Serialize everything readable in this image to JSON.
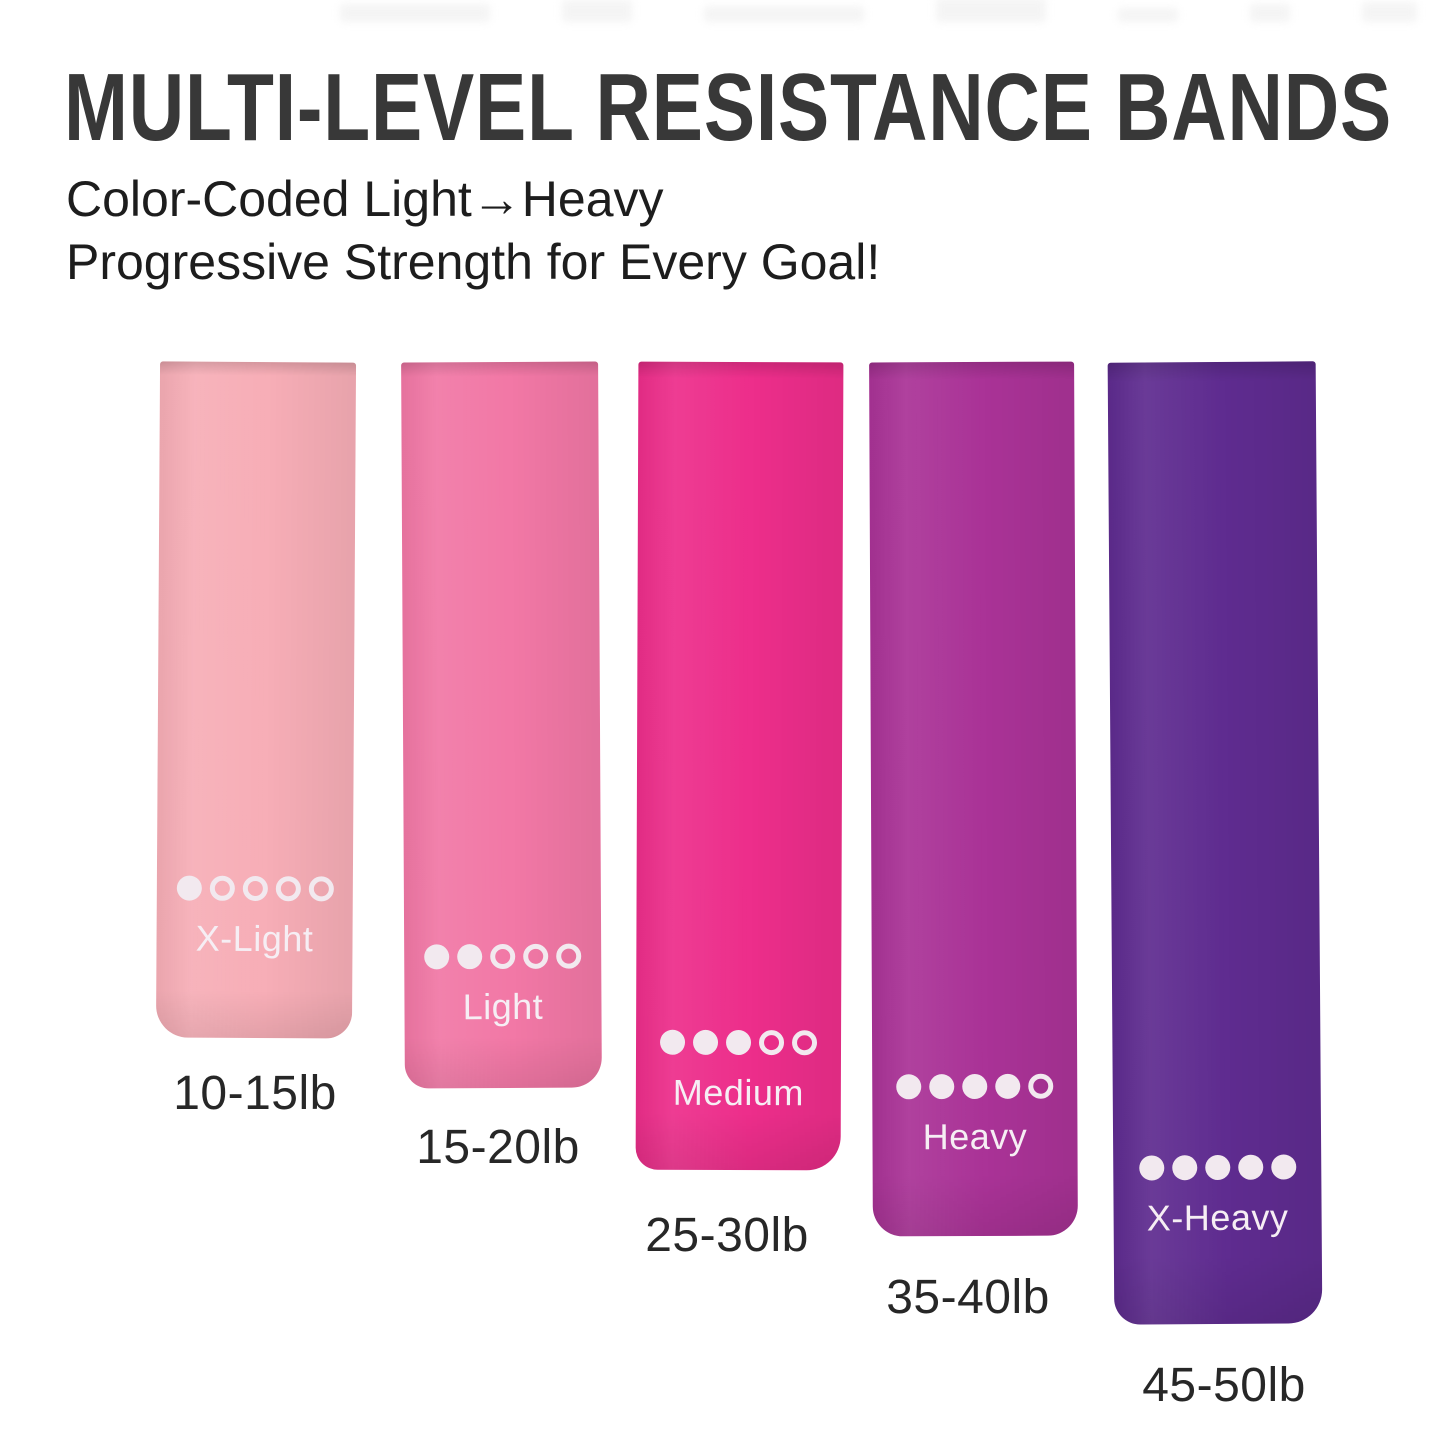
{
  "title": "MULTI-LEVEL RESISTANCE BANDS",
  "subtitle_line1": "Color-Coded Light→Heavy",
  "subtitle_line2": "Progressive Strength for Every Goal!",
  "dot_color": "#f2e9ef",
  "levels_total": 5,
  "bands": [
    {
      "name": "X-Light",
      "weight": "10-15lb",
      "color": "#f7aeb7",
      "dots_filled": 1,
      "dots_total": 5
    },
    {
      "name": "Light",
      "weight": "15-20lb",
      "color": "#f278a6",
      "dots_filled": 2,
      "dots_total": 5
    },
    {
      "name": "Medium",
      "weight": "25-30lb",
      "color": "#ed2e8b",
      "dots_filled": 3,
      "dots_total": 5
    },
    {
      "name": "Heavy",
      "weight": "35-40lb",
      "color": "#aa3397",
      "dots_filled": 4,
      "dots_total": 5
    },
    {
      "name": "X-Heavy",
      "weight": "45-50lb",
      "color": "#5f2c90",
      "dots_filled": 5,
      "dots_total": 5
    }
  ]
}
